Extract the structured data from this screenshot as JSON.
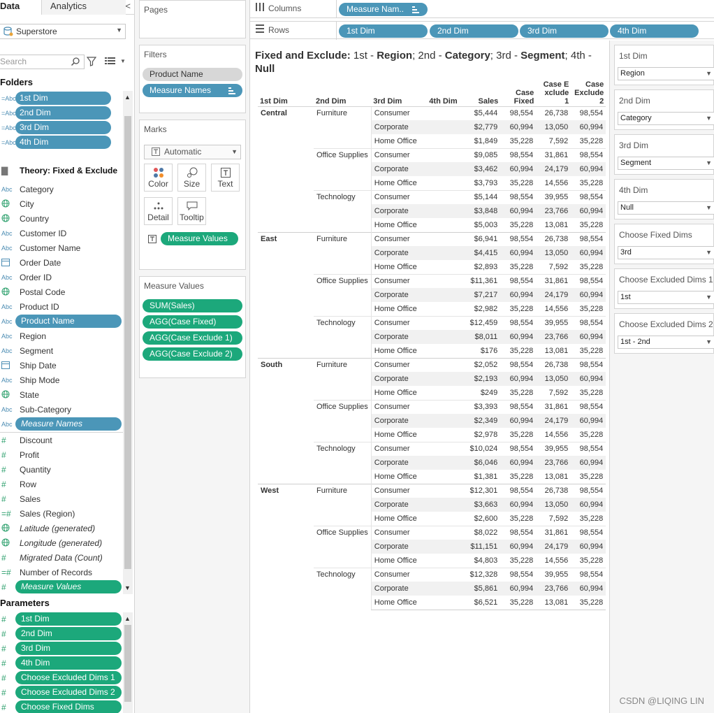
{
  "left": {
    "tabs": [
      "Data",
      "Analytics"
    ],
    "collapse": "<",
    "datasource": "Superstore",
    "search_placeholder": "Search",
    "folders_title": "Folders",
    "folder_fields": [
      {
        "type": "=Abc",
        "name": "1st Dim"
      },
      {
        "type": "=Abc",
        "name": "2nd Dim"
      },
      {
        "type": "=Abc",
        "name": "3rd Dim"
      },
      {
        "type": "=Abc",
        "name": "4th Dim"
      }
    ],
    "folder_name": "Theory: Fixed & Exclude",
    "dimensions": [
      {
        "type": "Abc",
        "name": "Category"
      },
      {
        "type": "globe",
        "name": "City"
      },
      {
        "type": "globe",
        "name": "Country"
      },
      {
        "type": "Abc",
        "name": "Customer ID"
      },
      {
        "type": "Abc",
        "name": "Customer Name"
      },
      {
        "type": "date",
        "name": "Order Date"
      },
      {
        "type": "Abc",
        "name": "Order ID"
      },
      {
        "type": "globe",
        "name": "Postal Code"
      },
      {
        "type": "Abc",
        "name": "Product ID"
      },
      {
        "type": "Abc",
        "name": "Product Name"
      },
      {
        "type": "Abc",
        "name": "Region"
      },
      {
        "type": "Abc",
        "name": "Segment"
      },
      {
        "type": "date",
        "name": "Ship Date"
      },
      {
        "type": "Abc",
        "name": "Ship Mode"
      },
      {
        "type": "globe",
        "name": "State"
      },
      {
        "type": "Abc",
        "name": "Sub-Category"
      },
      {
        "type": "Abc",
        "name": "Measure Names"
      }
    ],
    "measures": [
      {
        "type": "#",
        "name": "Discount"
      },
      {
        "type": "#",
        "name": "Profit"
      },
      {
        "type": "#",
        "name": "Quantity"
      },
      {
        "type": "#",
        "name": "Row"
      },
      {
        "type": "#",
        "name": "Sales"
      },
      {
        "type": "=#",
        "name": "Sales (Region)"
      },
      {
        "type": "globe",
        "name": "Latitude (generated)"
      },
      {
        "type": "globe",
        "name": "Longitude (generated)"
      },
      {
        "type": "#",
        "name": "Migrated Data (Count)"
      },
      {
        "type": "=#",
        "name": "Number of Records"
      },
      {
        "type": "#",
        "name": "Measure Values"
      }
    ],
    "parameters_title": "Parameters",
    "parameters": [
      {
        "type": "#",
        "name": "1st Dim"
      },
      {
        "type": "#",
        "name": "2nd Dim"
      },
      {
        "type": "#",
        "name": "3rd Dim"
      },
      {
        "type": "#",
        "name": "4th Dim"
      },
      {
        "type": "#",
        "name": "Choose Excluded Dims 1"
      },
      {
        "type": "#",
        "name": "Choose Excluded Dims 2"
      },
      {
        "type": "#",
        "name": "Choose Fixed Dims"
      }
    ]
  },
  "mid": {
    "pages": "Pages",
    "filters": "Filters",
    "filter_pills": [
      "Product Name",
      "Measure Names"
    ],
    "marks": "Marks",
    "mark_type": "Automatic",
    "mark_buttons": [
      "Color",
      "Size",
      "Text",
      "Detail",
      "Tooltip"
    ],
    "marks_pill": "Measure Values",
    "measure_values": "Measure Values",
    "measure_pills": [
      "SUM(Sales)",
      "AGG(Case Fixed)",
      "AGG(Case Exclude 1)",
      "AGG(Case Exclude 2)"
    ]
  },
  "shelves": {
    "columns_label": "Columns",
    "columns_pill": "Measure Nam..",
    "rows_label": "Rows",
    "rows_pills": [
      "1st Dim",
      "2nd Dim",
      "3rd Dim",
      "4th Dim"
    ]
  },
  "view": {
    "title_prefix": "Fixed and Exclude:",
    "title_parts": [
      {
        "t": " 1st - ",
        "b": false
      },
      {
        "t": "Region",
        "b": true
      },
      {
        "t": "; 2nd - ",
        "b": false
      },
      {
        "t": "Category",
        "b": true
      },
      {
        "t": "; 3rd - ",
        "b": false
      },
      {
        "t": "Segment",
        "b": true
      },
      {
        "t": "; 4th - ",
        "b": false
      },
      {
        "t": "Null",
        "b": true
      }
    ],
    "headers": [
      "1st Dim",
      "2nd Dim",
      "3rd Dim",
      "4th Dim",
      "Sales",
      "Case Fixed",
      "Case E xclude 1",
      "Case Exclude 2"
    ],
    "regions": [
      {
        "name": "Central",
        "cats": [
          {
            "name": "Furniture",
            "rows": [
              [
                "Consumer",
                "$5,444",
                "98,554",
                "26,738",
                "98,554"
              ],
              [
                "Corporate",
                "$2,779",
                "60,994",
                "13,050",
                "60,994"
              ],
              [
                "Home Office",
                "$1,849",
                "35,228",
                "7,592",
                "35,228"
              ]
            ]
          },
          {
            "name": "Office Supplies",
            "rows": [
              [
                "Consumer",
                "$9,085",
                "98,554",
                "31,861",
                "98,554"
              ],
              [
                "Corporate",
                "$3,462",
                "60,994",
                "24,179",
                "60,994"
              ],
              [
                "Home Office",
                "$3,793",
                "35,228",
                "14,556",
                "35,228"
              ]
            ]
          },
          {
            "name": "Technology",
            "rows": [
              [
                "Consumer",
                "$5,144",
                "98,554",
                "39,955",
                "98,554"
              ],
              [
                "Corporate",
                "$3,848",
                "60,994",
                "23,766",
                "60,994"
              ],
              [
                "Home Office",
                "$5,003",
                "35,228",
                "13,081",
                "35,228"
              ]
            ]
          }
        ]
      },
      {
        "name": "East",
        "cats": [
          {
            "name": "Furniture",
            "rows": [
              [
                "Consumer",
                "$6,941",
                "98,554",
                "26,738",
                "98,554"
              ],
              [
                "Corporate",
                "$4,415",
                "60,994",
                "13,050",
                "60,994"
              ],
              [
                "Home Office",
                "$2,893",
                "35,228",
                "7,592",
                "35,228"
              ]
            ]
          },
          {
            "name": "Office Supplies",
            "rows": [
              [
                "Consumer",
                "$11,361",
                "98,554",
                "31,861",
                "98,554"
              ],
              [
                "Corporate",
                "$7,217",
                "60,994",
                "24,179",
                "60,994"
              ],
              [
                "Home Office",
                "$2,982",
                "35,228",
                "14,556",
                "35,228"
              ]
            ]
          },
          {
            "name": "Technology",
            "rows": [
              [
                "Consumer",
                "$12,459",
                "98,554",
                "39,955",
                "98,554"
              ],
              [
                "Corporate",
                "$8,011",
                "60,994",
                "23,766",
                "60,994"
              ],
              [
                "Home Office",
                "$176",
                "35,228",
                "13,081",
                "35,228"
              ]
            ]
          }
        ]
      },
      {
        "name": "South",
        "cats": [
          {
            "name": "Furniture",
            "rows": [
              [
                "Consumer",
                "$2,052",
                "98,554",
                "26,738",
                "98,554"
              ],
              [
                "Corporate",
                "$2,193",
                "60,994",
                "13,050",
                "60,994"
              ],
              [
                "Home Office",
                "$249",
                "35,228",
                "7,592",
                "35,228"
              ]
            ]
          },
          {
            "name": "Office Supplies",
            "rows": [
              [
                "Consumer",
                "$3,393",
                "98,554",
                "31,861",
                "98,554"
              ],
              [
                "Corporate",
                "$2,349",
                "60,994",
                "24,179",
                "60,994"
              ],
              [
                "Home Office",
                "$2,978",
                "35,228",
                "14,556",
                "35,228"
              ]
            ]
          },
          {
            "name": "Technology",
            "rows": [
              [
                "Consumer",
                "$10,024",
                "98,554",
                "39,955",
                "98,554"
              ],
              [
                "Corporate",
                "$6,046",
                "60,994",
                "23,766",
                "60,994"
              ],
              [
                "Home Office",
                "$1,381",
                "35,228",
                "13,081",
                "35,228"
              ]
            ]
          }
        ]
      },
      {
        "name": "West",
        "cats": [
          {
            "name": "Furniture",
            "rows": [
              [
                "Consumer",
                "$12,301",
                "98,554",
                "26,738",
                "98,554"
              ],
              [
                "Corporate",
                "$3,663",
                "60,994",
                "13,050",
                "60,994"
              ],
              [
                "Home Office",
                "$2,600",
                "35,228",
                "7,592",
                "35,228"
              ]
            ]
          },
          {
            "name": "Office Supplies",
            "rows": [
              [
                "Consumer",
                "$8,022",
                "98,554",
                "31,861",
                "98,554"
              ],
              [
                "Corporate",
                "$11,151",
                "60,994",
                "24,179",
                "60,994"
              ],
              [
                "Home Office",
                "$4,803",
                "35,228",
                "14,556",
                "35,228"
              ]
            ]
          },
          {
            "name": "Technology",
            "rows": [
              [
                "Consumer",
                "$12,328",
                "98,554",
                "39,955",
                "98,554"
              ],
              [
                "Corporate",
                "$5,861",
                "60,994",
                "23,766",
                "60,994"
              ],
              [
                "Home Office",
                "$6,521",
                "35,228",
                "13,081",
                "35,228"
              ]
            ]
          }
        ]
      }
    ]
  },
  "right": {
    "params": [
      {
        "label": "1st Dim",
        "value": "Region"
      },
      {
        "label": "2nd Dim",
        "value": "Category"
      },
      {
        "label": "3rd Dim",
        "value": "Segment"
      },
      {
        "label": "4th Dim",
        "value": "Null"
      },
      {
        "label": "Choose Fixed Dims",
        "value": "3rd"
      },
      {
        "label": "Choose Excluded Dims 1",
        "value": "1st"
      },
      {
        "label": "Choose Excluded Dims 2",
        "value": "1st - 2nd"
      }
    ]
  },
  "watermark": "CSDN @LIQING LIN",
  "colors": {
    "dimension_pill": "#4b96b8",
    "measure_pill": "#1ca87b",
    "shelf_bg": "#f5f5f5"
  }
}
